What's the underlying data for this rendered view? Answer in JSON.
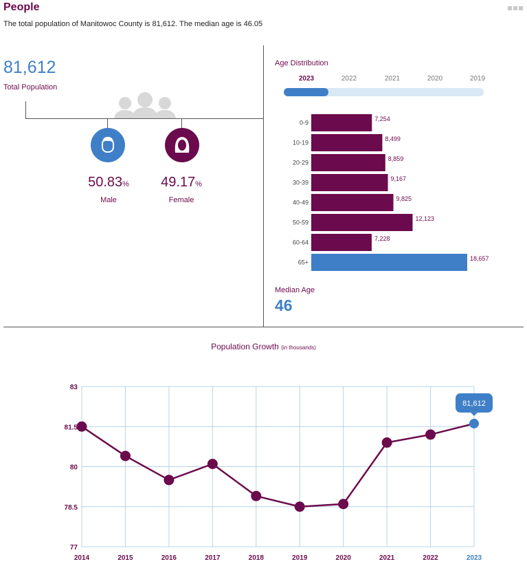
{
  "header": {
    "title": "People",
    "summary": "The total population of Manitowoc County is 81,612. The median age is 46.05"
  },
  "total": {
    "value": "81,612",
    "label": "Total Population"
  },
  "gender": {
    "male": {
      "value": "50.83",
      "unit": "%",
      "label": "Male"
    },
    "female": {
      "value": "49.17",
      "unit": "%",
      "label": "Female"
    }
  },
  "median_age": {
    "label": "Median Age",
    "value": "46"
  },
  "colors": {
    "purple": "#6b0a4c",
    "blue": "#3f7fc8",
    "grid": "#b8d3e6",
    "track": "#d8e8f4"
  },
  "chart_data": [
    {
      "type": "bar",
      "orientation": "horizontal",
      "title": "Age Distribution",
      "year_tabs": [
        "2023",
        "2022",
        "2021",
        "2020",
        "2019"
      ],
      "selected_year": "2023",
      "categories": [
        "0-9",
        "10-19",
        "20-29",
        "30-39",
        "40-49",
        "50-59",
        "60-64",
        "65+"
      ],
      "values": [
        7254,
        8499,
        8859,
        9167,
        9825,
        12123,
        7228,
        18657
      ],
      "value_labels": [
        "7,254",
        "8,499",
        "8,859",
        "9,167",
        "9,825",
        "12,123",
        "7,228",
        "18,657"
      ],
      "highlight_category": "65+"
    },
    {
      "type": "line",
      "title": "Population Growth",
      "subtitle": "(in thousands)",
      "x": [
        "2014",
        "2015",
        "2016",
        "2017",
        "2018",
        "2019",
        "2020",
        "2021",
        "2022",
        "2023"
      ],
      "y": [
        81.5,
        80.4,
        79.5,
        80.1,
        78.9,
        78.5,
        78.6,
        80.9,
        81.2,
        81.612
      ],
      "yticks": [
        "83",
        "81.5",
        "80",
        "78.5",
        "77"
      ],
      "ylim": [
        77,
        83
      ],
      "highlight_x": "2023",
      "tooltip": "81,612",
      "grid": true
    }
  ]
}
